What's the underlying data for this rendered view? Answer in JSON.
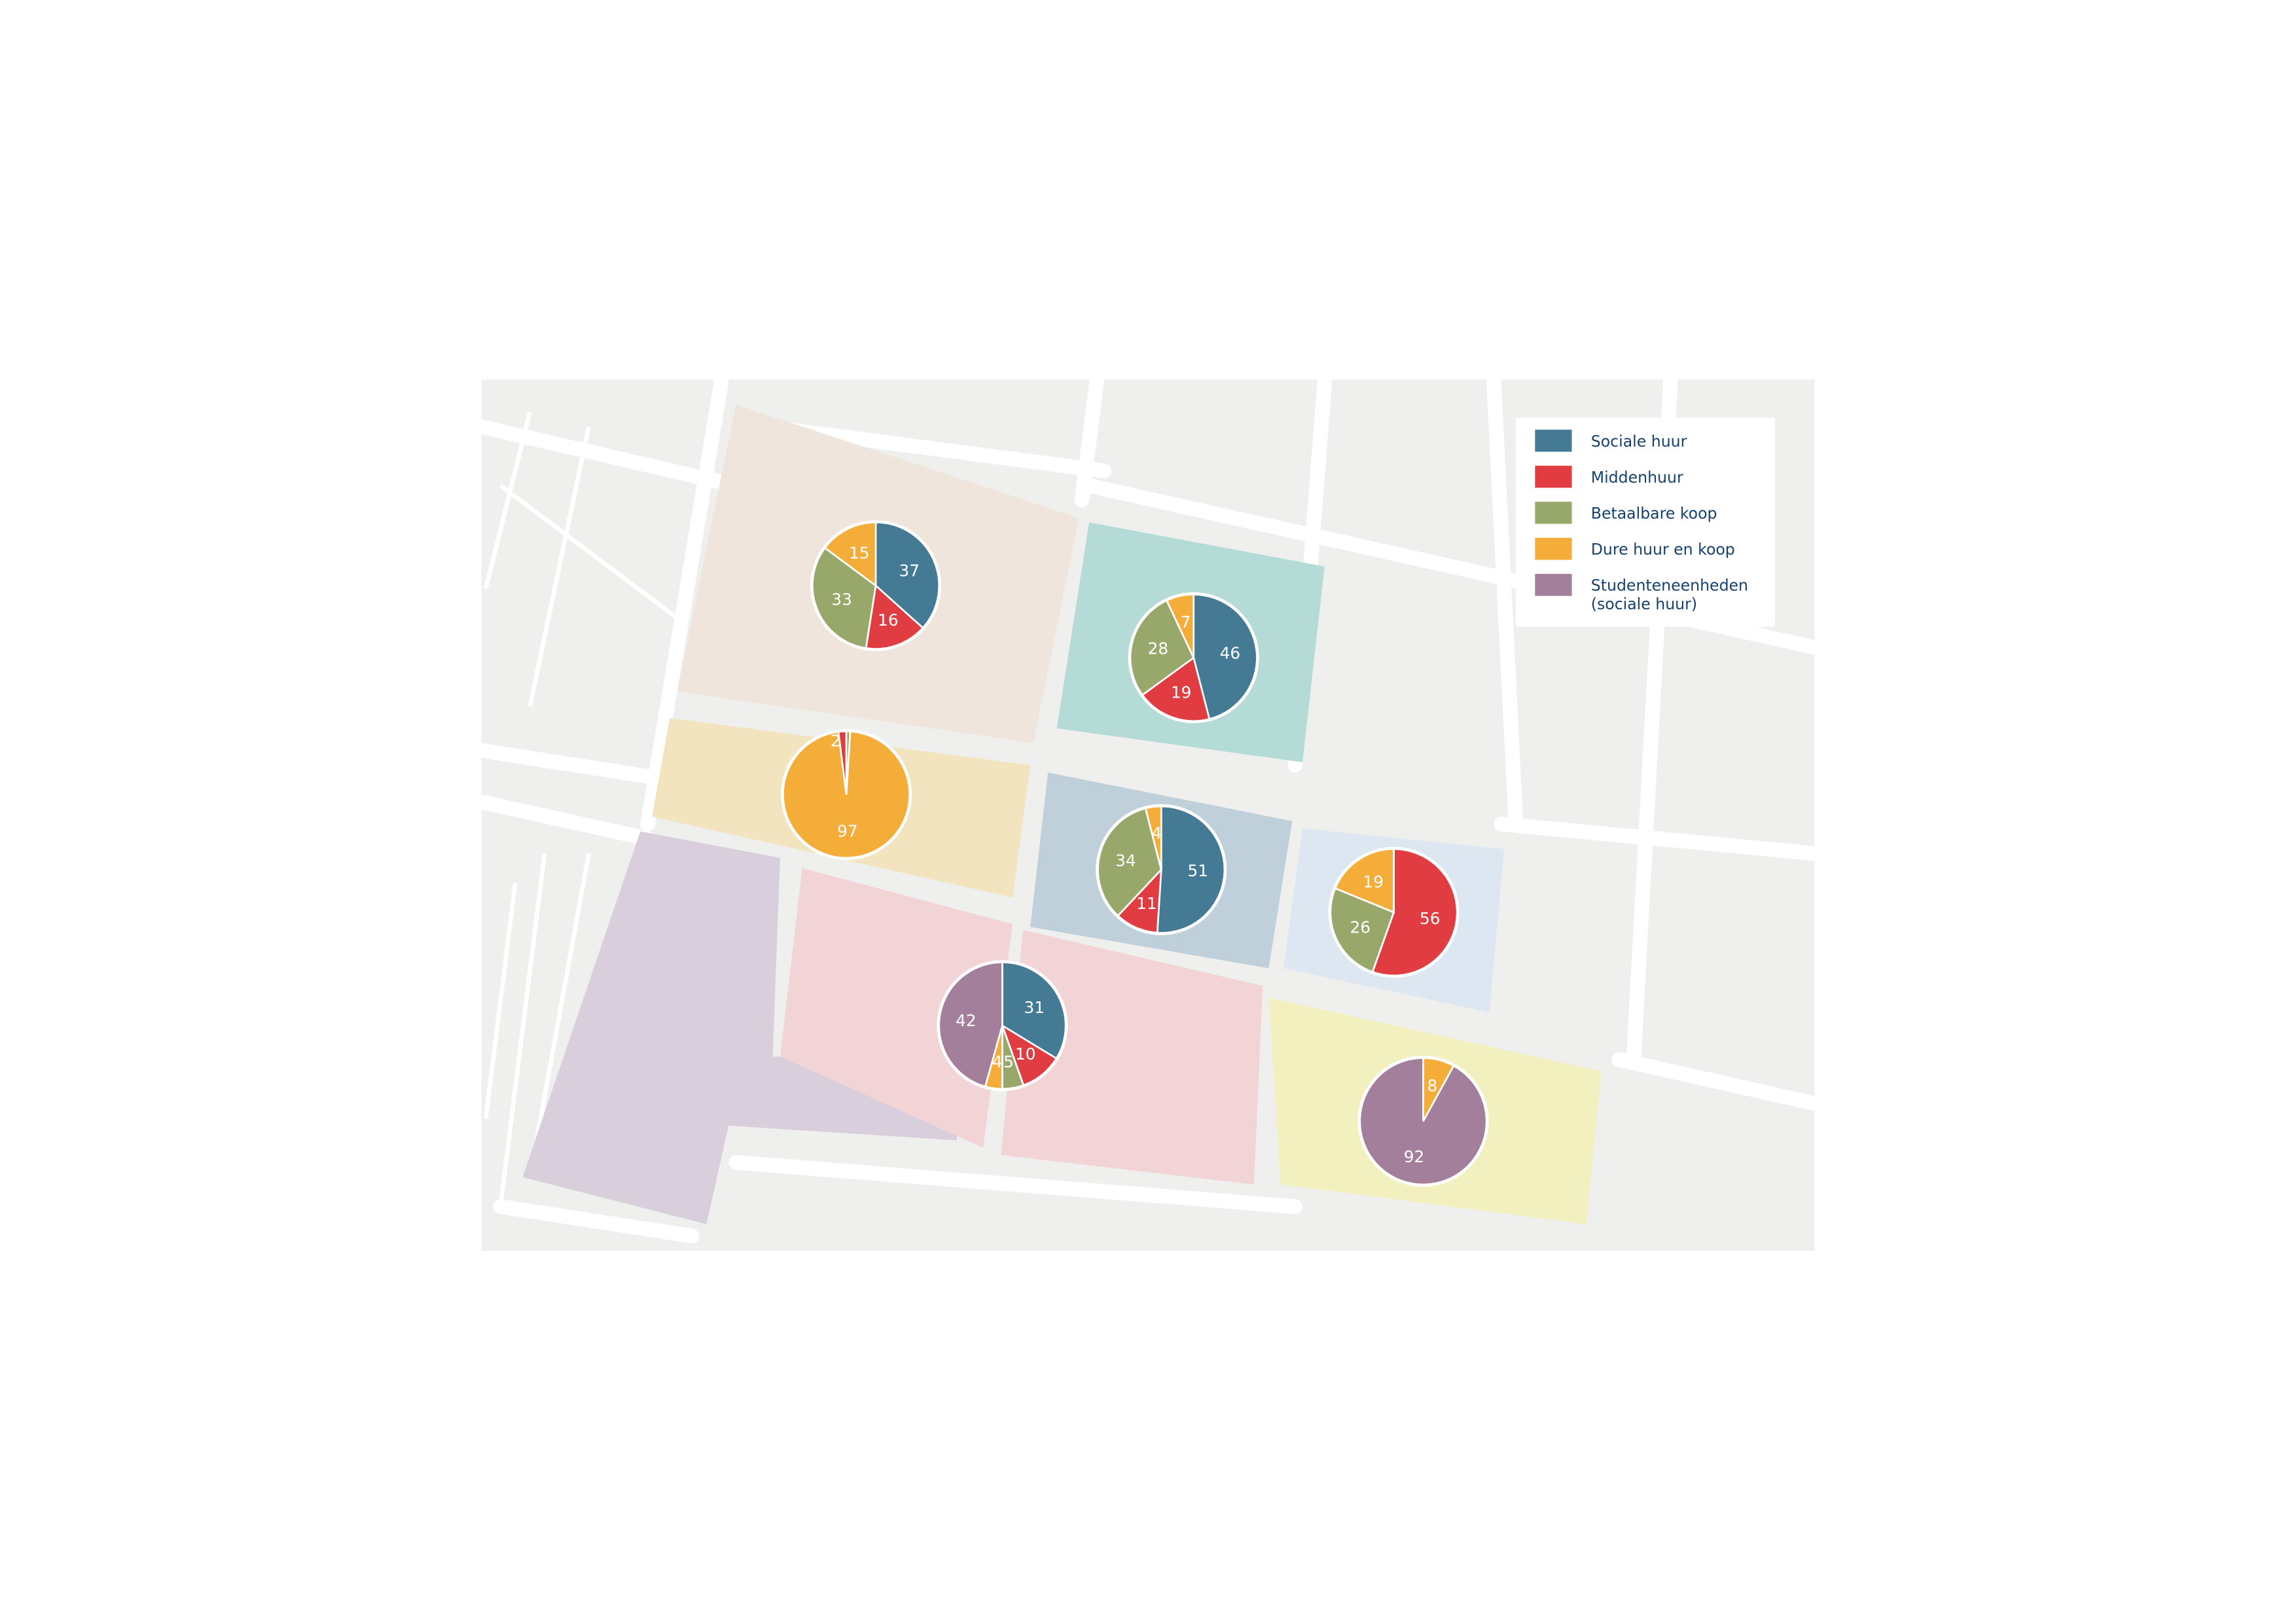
{
  "legend": {
    "items": [
      {
        "key": "sociale",
        "label": "Sociale huur",
        "color": "#447a94"
      },
      {
        "key": "midden",
        "label": "Middenhuur",
        "color": "#e03c42"
      },
      {
        "key": "betaalbaar",
        "label": "Betaalbare koop",
        "color": "#98a86a"
      },
      {
        "key": "duur",
        "label": "Dure huur en koop",
        "color": "#f5ad3a"
      },
      {
        "key": "student",
        "label": "Studenteneenheden",
        "label2": "(sociale huur)",
        "color": "#a47f9b"
      }
    ]
  },
  "chart_data": {
    "type": "pie",
    "unit": "percent",
    "pies": [
      {
        "district": "beige",
        "slices": [
          {
            "key": "sociale",
            "value": 37
          },
          {
            "key": "midden",
            "value": 16
          },
          {
            "key": "betaalbaar",
            "value": 33
          },
          {
            "key": "duur",
            "value": 15
          }
        ]
      },
      {
        "district": "teal",
        "slices": [
          {
            "key": "sociale",
            "value": 46
          },
          {
            "key": "midden",
            "value": 19
          },
          {
            "key": "betaalbaar",
            "value": 28
          },
          {
            "key": "duur",
            "value": 7
          }
        ]
      },
      {
        "district": "ochre",
        "slices": [
          {
            "key": "betaalbaar",
            "value": 1
          },
          {
            "key": "duur",
            "value": 97
          },
          {
            "key": "midden",
            "value": 2
          }
        ]
      },
      {
        "district": "steel-blue",
        "slices": [
          {
            "key": "sociale",
            "value": 51
          },
          {
            "key": "midden",
            "value": 11
          },
          {
            "key": "betaalbaar",
            "value": 34
          },
          {
            "key": "duur",
            "value": 4
          }
        ]
      },
      {
        "district": "light-blue",
        "slices": [
          {
            "key": "midden",
            "value": 56
          },
          {
            "key": "betaalbaar",
            "value": 26
          },
          {
            "key": "duur",
            "value": 19
          }
        ]
      },
      {
        "district": "pink",
        "slices": [
          {
            "key": "sociale",
            "value": 31
          },
          {
            "key": "midden",
            "value": 10
          },
          {
            "key": "betaalbaar",
            "value": 5
          },
          {
            "key": "duur",
            "value": 4
          },
          {
            "key": "student",
            "value": 42
          }
        ]
      },
      {
        "district": "yellow",
        "slices": [
          {
            "key": "duur",
            "value": 8
          },
          {
            "key": "student",
            "value": 92
          }
        ]
      }
    ]
  }
}
